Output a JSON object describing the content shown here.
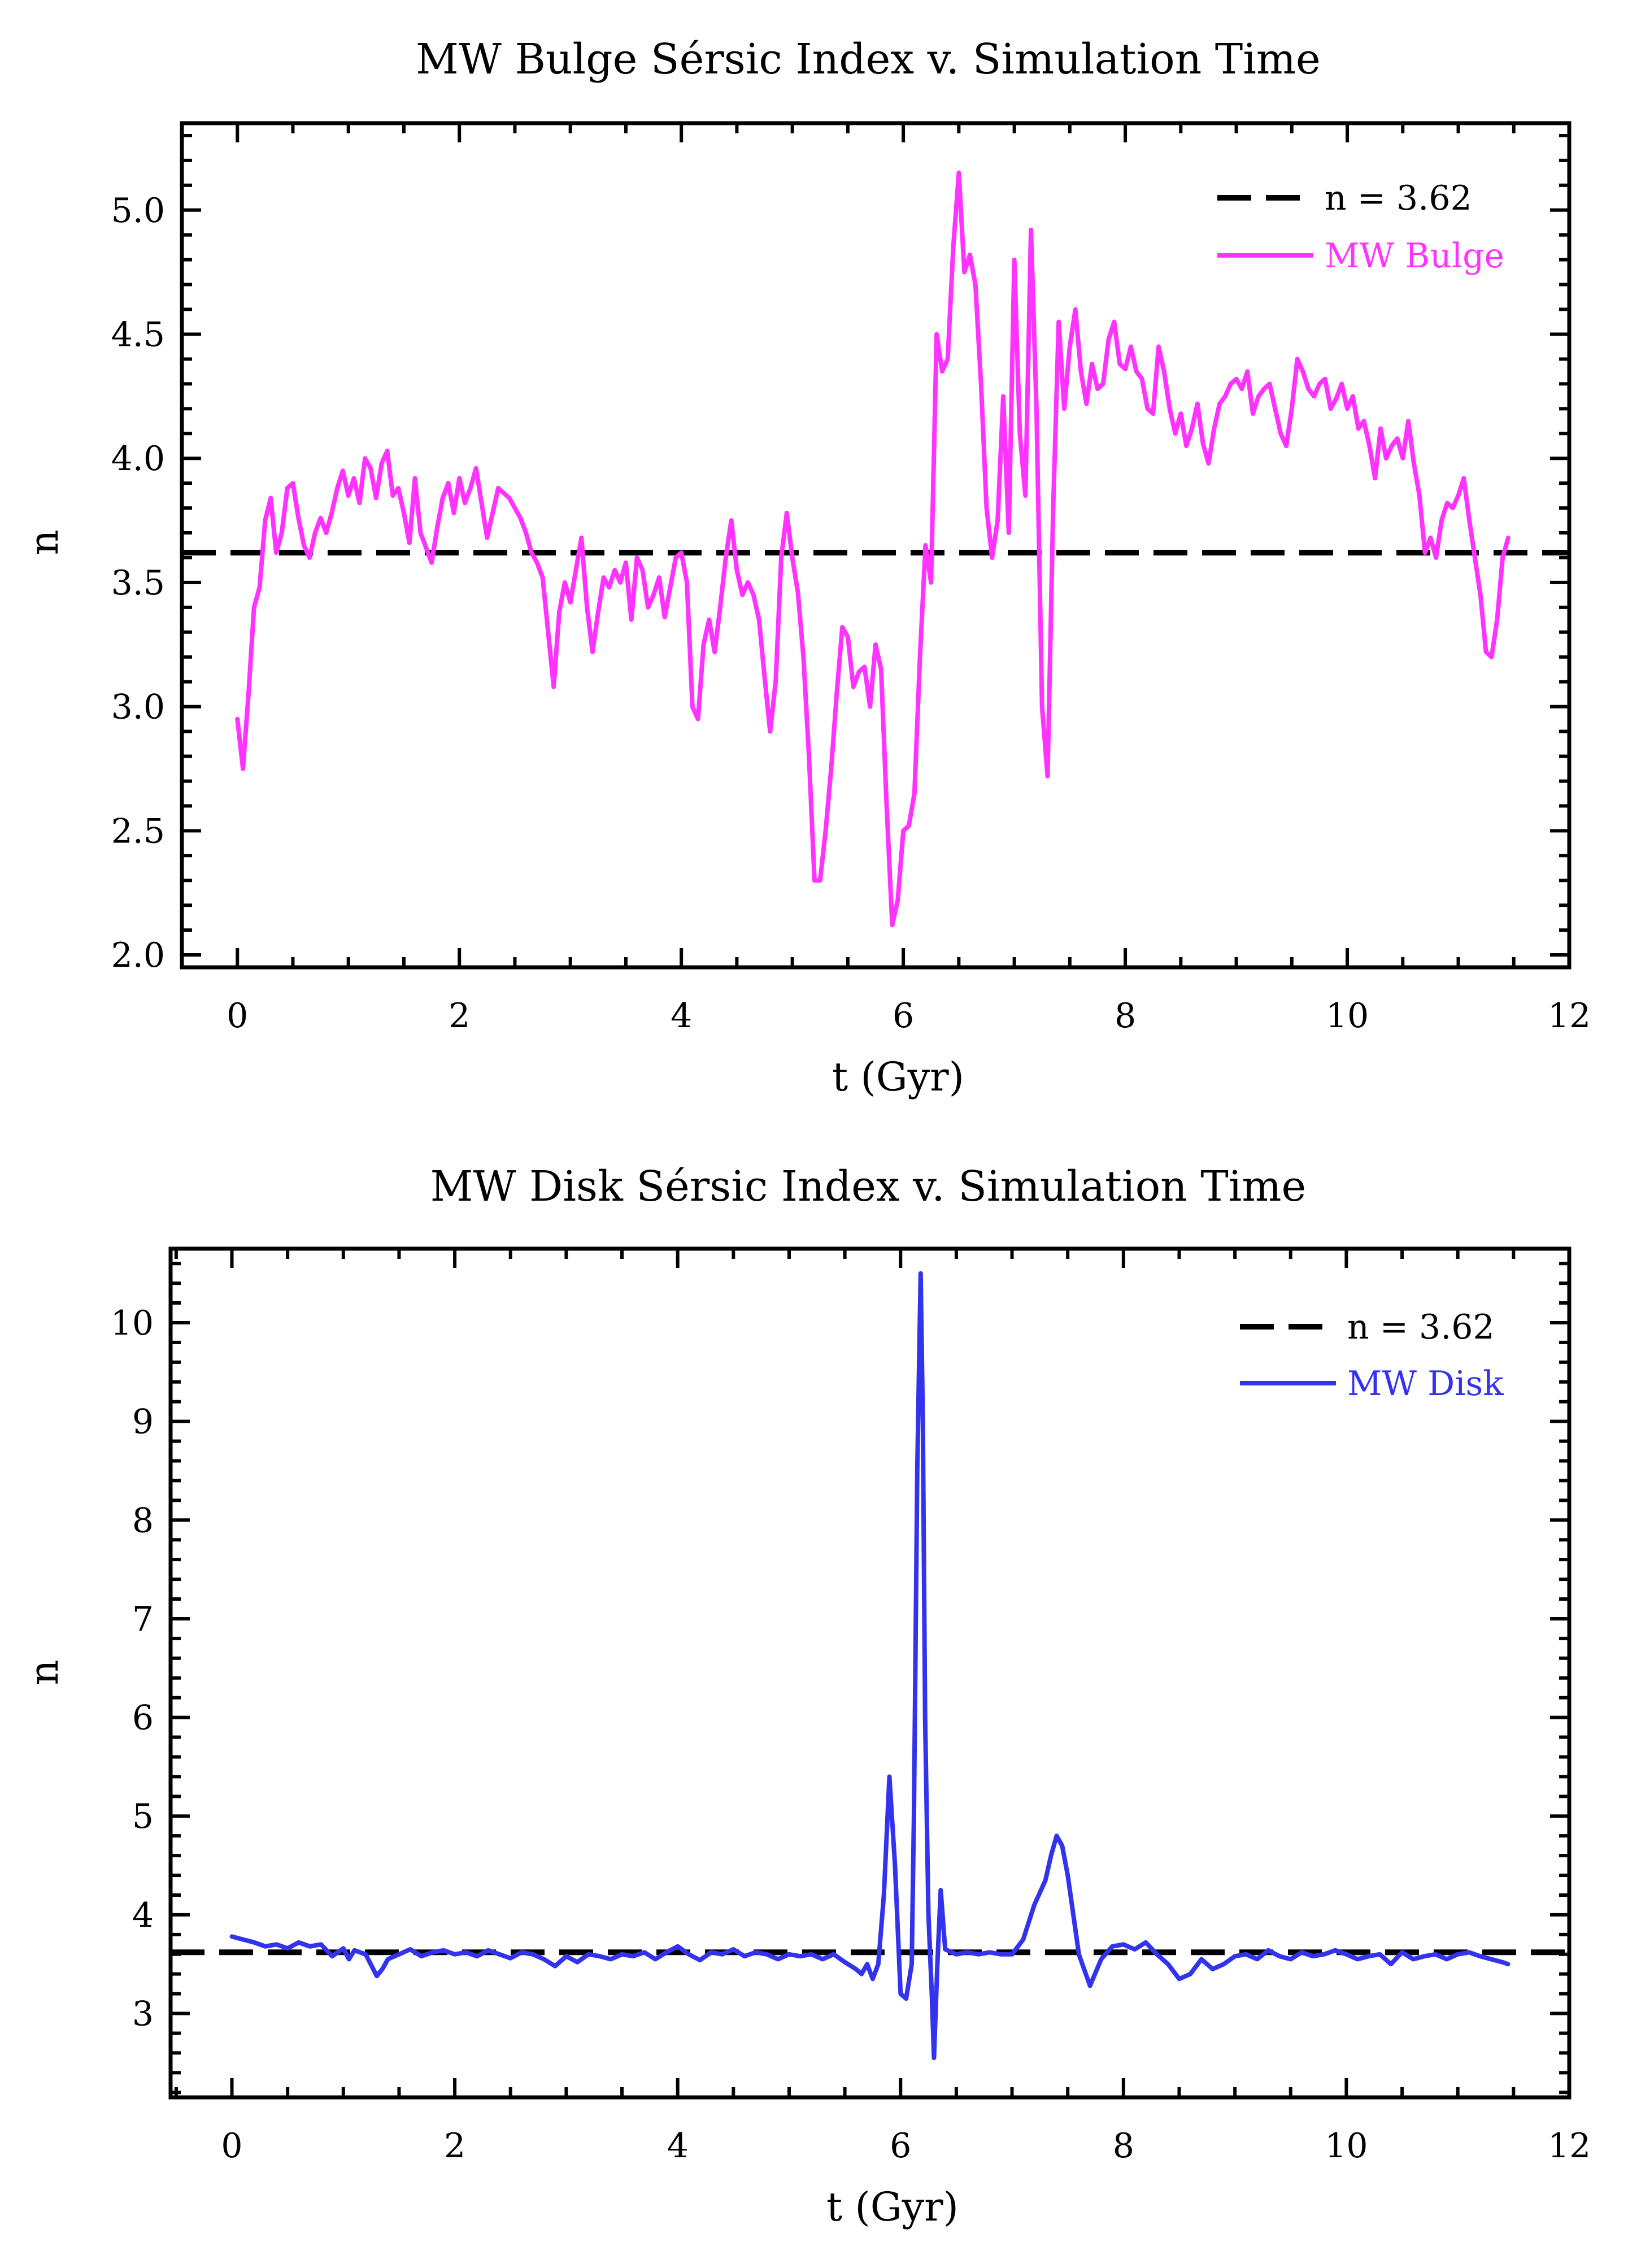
{
  "chart_data": [
    {
      "type": "line",
      "title": "MW Bulge Sérsic Index v. Simulation Time",
      "xlabel": "t (Gyr)",
      "ylabel": "n",
      "xlim": [
        -0.5,
        12
      ],
      "ylim": [
        1.95,
        5.35
      ],
      "xticks": [
        0,
        2,
        4,
        6,
        8,
        10,
        12
      ],
      "xtick_labels": [
        "0",
        "2",
        "4",
        "6",
        "8",
        "10",
        "12"
      ],
      "yticks": [
        2.0,
        2.5,
        3.0,
        3.5,
        4.0,
        4.5,
        5.0
      ],
      "ytick_labels": [
        "2.0",
        "2.5",
        "3.0",
        "3.5",
        "4.0",
        "4.5",
        "5.0"
      ],
      "legend_position": "top-right",
      "reference_line": {
        "label": "n = 3.62",
        "value": 3.62,
        "color": "#000000",
        "style": "dashed"
      },
      "series": [
        {
          "name": "MW Bulge",
          "color": "#ff33ff",
          "x": [
            0.0,
            0.05,
            0.1,
            0.15,
            0.2,
            0.25,
            0.3,
            0.35,
            0.4,
            0.45,
            0.5,
            0.55,
            0.6,
            0.65,
            0.7,
            0.75,
            0.8,
            0.85,
            0.9,
            0.95,
            1.0,
            1.05,
            1.1,
            1.15,
            1.2,
            1.25,
            1.3,
            1.35,
            1.4,
            1.45,
            1.5,
            1.55,
            1.6,
            1.65,
            1.7,
            1.75,
            1.8,
            1.85,
            1.9,
            1.95,
            2.0,
            2.05,
            2.1,
            2.15,
            2.2,
            2.25,
            2.3,
            2.35,
            2.4,
            2.45,
            2.5,
            2.55,
            2.6,
            2.65,
            2.7,
            2.75,
            2.8,
            2.85,
            2.9,
            2.95,
            3.0,
            3.05,
            3.1,
            3.15,
            3.2,
            3.25,
            3.3,
            3.35,
            3.4,
            3.45,
            3.5,
            3.55,
            3.6,
            3.65,
            3.7,
            3.75,
            3.8,
            3.85,
            3.9,
            3.95,
            4.0,
            4.05,
            4.1,
            4.15,
            4.2,
            4.25,
            4.3,
            4.35,
            4.4,
            4.45,
            4.5,
            4.55,
            4.6,
            4.65,
            4.7,
            4.75,
            4.8,
            4.85,
            4.9,
            4.95,
            5.0,
            5.05,
            5.1,
            5.15,
            5.2,
            5.25,
            5.3,
            5.35,
            5.4,
            5.45,
            5.5,
            5.55,
            5.6,
            5.65,
            5.7,
            5.75,
            5.8,
            5.85,
            5.9,
            5.95,
            6.0,
            6.05,
            6.1,
            6.15,
            6.2,
            6.25,
            6.3,
            6.35,
            6.4,
            6.45,
            6.5,
            6.55,
            6.6,
            6.65,
            6.7,
            6.75,
            6.8,
            6.85,
            6.9,
            6.95,
            7.0,
            7.05,
            7.1,
            7.15,
            7.2,
            7.25,
            7.3,
            7.35,
            7.4,
            7.45,
            7.5,
            7.55,
            7.6,
            7.65,
            7.7,
            7.75,
            7.8,
            7.85,
            7.9,
            7.95,
            8.0,
            8.05,
            8.1,
            8.15,
            8.2,
            8.25,
            8.3,
            8.35,
            8.4,
            8.45,
            8.5,
            8.55,
            8.6,
            8.65,
            8.7,
            8.75,
            8.8,
            8.85,
            8.9,
            8.95,
            9.0,
            9.05,
            9.1,
            9.15,
            9.2,
            9.25,
            9.3,
            9.35,
            9.4,
            9.45,
            9.5,
            9.55,
            9.6,
            9.65,
            9.7,
            9.75,
            9.8,
            9.85,
            9.9,
            9.95,
            10.0,
            10.05,
            10.1,
            10.15,
            10.2,
            10.25,
            10.3,
            10.35,
            10.4,
            10.45,
            10.5,
            10.55,
            10.6,
            10.65,
            10.7,
            10.75,
            10.8,
            10.85,
            10.9,
            10.95,
            11.0,
            11.05,
            11.1,
            11.15,
            11.2,
            11.25,
            11.3,
            11.35,
            11.4,
            11.45
          ],
          "y": [
            2.95,
            2.75,
            3.05,
            3.4,
            3.48,
            3.75,
            3.84,
            3.62,
            3.7,
            3.88,
            3.9,
            3.76,
            3.65,
            3.6,
            3.7,
            3.76,
            3.7,
            3.78,
            3.88,
            3.95,
            3.85,
            3.92,
            3.82,
            4.0,
            3.96,
            3.84,
            3.98,
            4.03,
            3.85,
            3.88,
            3.78,
            3.66,
            3.92,
            3.7,
            3.64,
            3.58,
            3.72,
            3.84,
            3.9,
            3.78,
            3.92,
            3.82,
            3.88,
            3.96,
            3.82,
            3.68,
            3.78,
            3.88,
            3.86,
            3.84,
            3.8,
            3.76,
            3.7,
            3.62,
            3.58,
            3.52,
            3.3,
            3.08,
            3.38,
            3.5,
            3.42,
            3.55,
            3.68,
            3.4,
            3.22,
            3.38,
            3.52,
            3.48,
            3.55,
            3.5,
            3.58,
            3.35,
            3.6,
            3.55,
            3.4,
            3.45,
            3.52,
            3.36,
            3.48,
            3.6,
            3.62,
            3.5,
            3.0,
            2.95,
            3.25,
            3.35,
            3.22,
            3.4,
            3.6,
            3.75,
            3.55,
            3.45,
            3.5,
            3.45,
            3.35,
            3.12,
            2.9,
            3.1,
            3.6,
            3.78,
            3.6,
            3.46,
            3.2,
            2.8,
            2.3,
            2.3,
            2.5,
            2.75,
            3.05,
            3.32,
            3.28,
            3.08,
            3.14,
            3.16,
            3.0,
            3.25,
            3.15,
            2.6,
            2.12,
            2.22,
            2.5,
            2.52,
            2.65,
            3.2,
            3.65,
            3.5,
            4.5,
            4.35,
            4.4,
            4.85,
            5.15,
            4.75,
            4.82,
            4.7,
            4.3,
            3.8,
            3.6,
            3.75,
            4.25,
            3.7,
            4.8,
            4.1,
            3.85,
            4.92,
            4.2,
            3.0,
            2.72,
            3.8,
            4.55,
            4.2,
            4.45,
            4.6,
            4.35,
            4.22,
            4.38,
            4.28,
            4.3,
            4.48,
            4.55,
            4.38,
            4.36,
            4.45,
            4.35,
            4.32,
            4.2,
            4.18,
            4.45,
            4.35,
            4.2,
            4.1,
            4.18,
            4.05,
            4.12,
            4.22,
            4.06,
            3.98,
            4.12,
            4.22,
            4.25,
            4.3,
            4.32,
            4.28,
            4.35,
            4.18,
            4.25,
            4.28,
            4.3,
            4.2,
            4.1,
            4.05,
            4.2,
            4.4,
            4.35,
            4.28,
            4.25,
            4.3,
            4.32,
            4.2,
            4.24,
            4.3,
            4.2,
            4.25,
            4.12,
            4.15,
            4.05,
            3.92,
            4.12,
            4.0,
            4.05,
            4.08,
            4.0,
            4.15,
            3.98,
            3.85,
            3.62,
            3.68,
            3.6,
            3.75,
            3.82,
            3.8,
            3.85,
            3.92,
            3.75,
            3.6,
            3.45,
            3.22,
            3.2,
            3.35,
            3.6,
            3.68
          ]
        }
      ]
    },
    {
      "type": "line",
      "title": "MW Disk Sérsic Index v. Simulation Time",
      "xlabel": "t (Gyr)",
      "ylabel": "n",
      "xlim": [
        -0.55,
        12
      ],
      "ylim": [
        2.15,
        10.75
      ],
      "xticks": [
        0,
        2,
        4,
        6,
        8,
        10,
        12
      ],
      "xtick_labels": [
        "0",
        "2",
        "4",
        "6",
        "8",
        "10",
        "12"
      ],
      "yticks": [
        3,
        4,
        5,
        6,
        7,
        8,
        9,
        10
      ],
      "ytick_labels": [
        "3",
        "4",
        "5",
        "6",
        "7",
        "8",
        "9",
        "10"
      ],
      "legend_position": "top-right",
      "reference_line": {
        "label": "n = 3.62",
        "value": 3.62,
        "color": "#000000",
        "style": "dashed"
      },
      "series": [
        {
          "name": "MW Disk",
          "color": "#3333ee",
          "x": [
            0.0,
            0.1,
            0.2,
            0.3,
            0.4,
            0.5,
            0.6,
            0.7,
            0.8,
            0.9,
            1.0,
            1.05,
            1.1,
            1.2,
            1.3,
            1.35,
            1.4,
            1.5,
            1.6,
            1.7,
            1.8,
            1.9,
            2.0,
            2.1,
            2.2,
            2.3,
            2.4,
            2.5,
            2.6,
            2.7,
            2.8,
            2.9,
            3.0,
            3.1,
            3.2,
            3.3,
            3.4,
            3.5,
            3.6,
            3.7,
            3.8,
            3.9,
            4.0,
            4.1,
            4.2,
            4.3,
            4.4,
            4.5,
            4.6,
            4.7,
            4.8,
            4.9,
            5.0,
            5.1,
            5.2,
            5.3,
            5.4,
            5.5,
            5.6,
            5.65,
            5.7,
            5.75,
            5.8,
            5.85,
            5.9,
            5.95,
            6.0,
            6.05,
            6.1,
            6.12,
            6.15,
            6.18,
            6.2,
            6.22,
            6.25,
            6.28,
            6.3,
            6.33,
            6.36,
            6.4,
            6.5,
            6.6,
            6.7,
            6.8,
            6.9,
            7.0,
            7.1,
            7.2,
            7.3,
            7.35,
            7.4,
            7.45,
            7.5,
            7.55,
            7.6,
            7.7,
            7.8,
            7.9,
            8.0,
            8.1,
            8.2,
            8.3,
            8.4,
            8.5,
            8.6,
            8.7,
            8.8,
            8.9,
            9.0,
            9.1,
            9.2,
            9.3,
            9.4,
            9.5,
            9.6,
            9.7,
            9.8,
            9.9,
            10.0,
            10.1,
            10.2,
            10.3,
            10.4,
            10.5,
            10.6,
            10.7,
            10.8,
            10.9,
            11.0,
            11.1,
            11.2,
            11.3,
            11.4,
            11.45
          ],
          "y": [
            3.78,
            3.75,
            3.72,
            3.68,
            3.7,
            3.66,
            3.72,
            3.68,
            3.7,
            3.58,
            3.66,
            3.55,
            3.64,
            3.6,
            3.38,
            3.45,
            3.55,
            3.6,
            3.65,
            3.58,
            3.62,
            3.64,
            3.6,
            3.62,
            3.58,
            3.64,
            3.6,
            3.56,
            3.62,
            3.6,
            3.55,
            3.48,
            3.58,
            3.52,
            3.6,
            3.58,
            3.55,
            3.6,
            3.58,
            3.62,
            3.55,
            3.62,
            3.68,
            3.6,
            3.54,
            3.62,
            3.6,
            3.65,
            3.58,
            3.62,
            3.6,
            3.55,
            3.6,
            3.58,
            3.6,
            3.55,
            3.6,
            3.52,
            3.45,
            3.4,
            3.5,
            3.35,
            3.5,
            4.2,
            5.4,
            4.5,
            3.2,
            3.15,
            3.5,
            5.0,
            8.5,
            10.5,
            9.0,
            6.0,
            4.0,
            3.2,
            2.55,
            3.5,
            4.25,
            3.65,
            3.6,
            3.62,
            3.6,
            3.62,
            3.6,
            3.6,
            3.75,
            4.1,
            4.35,
            4.6,
            4.8,
            4.7,
            4.4,
            4.0,
            3.6,
            3.28,
            3.55,
            3.68,
            3.7,
            3.65,
            3.72,
            3.6,
            3.5,
            3.35,
            3.4,
            3.55,
            3.45,
            3.5,
            3.58,
            3.6,
            3.55,
            3.64,
            3.58,
            3.55,
            3.62,
            3.58,
            3.6,
            3.64,
            3.6,
            3.55,
            3.58,
            3.6,
            3.5,
            3.62,
            3.55,
            3.58,
            3.6,
            3.55,
            3.6,
            3.62,
            3.58,
            3.55,
            3.52,
            3.5
          ]
        }
      ]
    }
  ]
}
